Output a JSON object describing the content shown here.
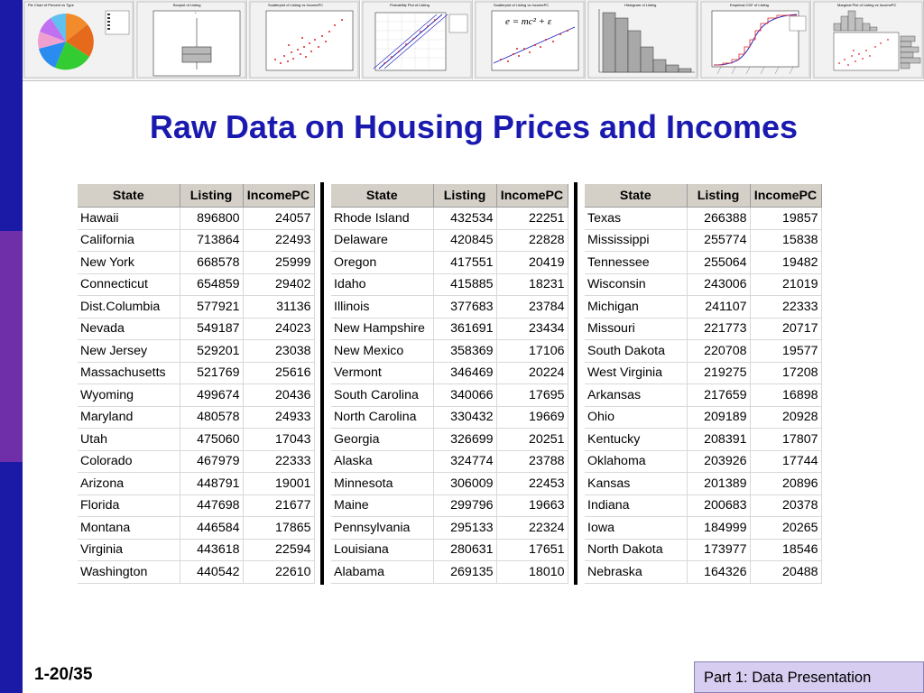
{
  "slide": {
    "title": "Raw Data on Housing Prices and Incomes",
    "page_number": "1-20/35",
    "footer": "Part 1: Data Presentation",
    "colors": {
      "title": "#1a1ab0",
      "sidebar_top": "#1a1aa6",
      "sidebar_mid": "#6e2fa8",
      "footer_bg": "#d6cdf0"
    }
  },
  "thumbnails": [
    {
      "title": "Pie Chart of Percent vs Type",
      "chart": "pie"
    },
    {
      "title": "Boxplot of Listing",
      "chart": "boxplot"
    },
    {
      "title": "Scatterplot of Listing vs IncomePC",
      "chart": "scatter"
    },
    {
      "title": "Probability Plot of Listing",
      "chart": "probability"
    },
    {
      "title": "Scatterplot of Listing vs IncomePC",
      "chart": "scatter-fit",
      "formula": "e = mc² + ε"
    },
    {
      "title": "Histogram of Listing",
      "chart": "histogram"
    },
    {
      "title": "Empirical CDF of Listing",
      "chart": "cdf"
    },
    {
      "title": "Marginal Plot of Listing vs IncomePC",
      "chart": "marginal"
    }
  ],
  "table": {
    "headers": [
      "State",
      "Listing",
      "IncomePC"
    ],
    "parts": [
      [
        {
          "state": "Hawaii",
          "listing": "896800",
          "income": "24057"
        },
        {
          "state": "California",
          "listing": "713864",
          "income": "22493"
        },
        {
          "state": "New York",
          "listing": "668578",
          "income": "25999"
        },
        {
          "state": "Connecticut",
          "listing": "654859",
          "income": "29402"
        },
        {
          "state": "Dist.Columbia",
          "listing": "577921",
          "income": "31136"
        },
        {
          "state": "Nevada",
          "listing": "549187",
          "income": "24023"
        },
        {
          "state": "New Jersey",
          "listing": "529201",
          "income": "23038"
        },
        {
          "state": "Massachusetts",
          "listing": "521769",
          "income": "25616"
        },
        {
          "state": "Wyoming",
          "listing": "499674",
          "income": "20436"
        },
        {
          "state": "Maryland",
          "listing": "480578",
          "income": "24933"
        },
        {
          "state": "Utah",
          "listing": "475060",
          "income": "17043"
        },
        {
          "state": "Colorado",
          "listing": "467979",
          "income": "22333"
        },
        {
          "state": "Arizona",
          "listing": "448791",
          "income": "19001"
        },
        {
          "state": "Florida",
          "listing": "447698",
          "income": "21677"
        },
        {
          "state": "Montana",
          "listing": "446584",
          "income": "17865"
        },
        {
          "state": "Virginia",
          "listing": "443618",
          "income": "22594"
        },
        {
          "state": "Washington",
          "listing": "440542",
          "income": "22610"
        }
      ],
      [
        {
          "state": "Rhode Island",
          "listing": "432534",
          "income": "22251"
        },
        {
          "state": "Delaware",
          "listing": "420845",
          "income": "22828"
        },
        {
          "state": "Oregon",
          "listing": "417551",
          "income": "20419"
        },
        {
          "state": "Idaho",
          "listing": "415885",
          "income": "18231"
        },
        {
          "state": "Illinois",
          "listing": "377683",
          "income": "23784"
        },
        {
          "state": "New Hampshire",
          "listing": "361691",
          "income": "23434"
        },
        {
          "state": "New Mexico",
          "listing": "358369",
          "income": "17106"
        },
        {
          "state": "Vermont",
          "listing": "346469",
          "income": "20224"
        },
        {
          "state": "South Carolina",
          "listing": "340066",
          "income": "17695"
        },
        {
          "state": "North Carolina",
          "listing": "330432",
          "income": "19669"
        },
        {
          "state": "Georgia",
          "listing": "326699",
          "income": "20251"
        },
        {
          "state": "Alaska",
          "listing": "324774",
          "income": "23788"
        },
        {
          "state": "Minnesota",
          "listing": "306009",
          "income": "22453"
        },
        {
          "state": "Maine",
          "listing": "299796",
          "income": "19663"
        },
        {
          "state": "Pennsylvania",
          "listing": "295133",
          "income": "22324"
        },
        {
          "state": "Louisiana",
          "listing": "280631",
          "income": "17651"
        },
        {
          "state": "Alabama",
          "listing": "269135",
          "income": "18010"
        }
      ],
      [
        {
          "state": "Texas",
          "listing": "266388",
          "income": "19857"
        },
        {
          "state": "Mississippi",
          "listing": "255774",
          "income": "15838"
        },
        {
          "state": "Tennessee",
          "listing": "255064",
          "income": "19482"
        },
        {
          "state": "Wisconsin",
          "listing": "243006",
          "income": "21019"
        },
        {
          "state": "Michigan",
          "listing": "241107",
          "income": "22333"
        },
        {
          "state": "Missouri",
          "listing": "221773",
          "income": "20717"
        },
        {
          "state": "South Dakota",
          "listing": "220708",
          "income": "19577"
        },
        {
          "state": "West Virginia",
          "listing": "219275",
          "income": "17208"
        },
        {
          "state": "Arkansas",
          "listing": "217659",
          "income": "16898"
        },
        {
          "state": "Ohio",
          "listing": "209189",
          "income": "20928"
        },
        {
          "state": "Kentucky",
          "listing": "208391",
          "income": "17807"
        },
        {
          "state": "Oklahoma",
          "listing": "203926",
          "income": "17744"
        },
        {
          "state": "Kansas",
          "listing": "201389",
          "income": "20896"
        },
        {
          "state": "Indiana",
          "listing": "200683",
          "income": "20378"
        },
        {
          "state": "Iowa",
          "listing": "184999",
          "income": "20265"
        },
        {
          "state": "North Dakota",
          "listing": "173977",
          "income": "18546"
        },
        {
          "state": "Nebraska",
          "listing": "164326",
          "income": "20488"
        }
      ]
    ]
  }
}
